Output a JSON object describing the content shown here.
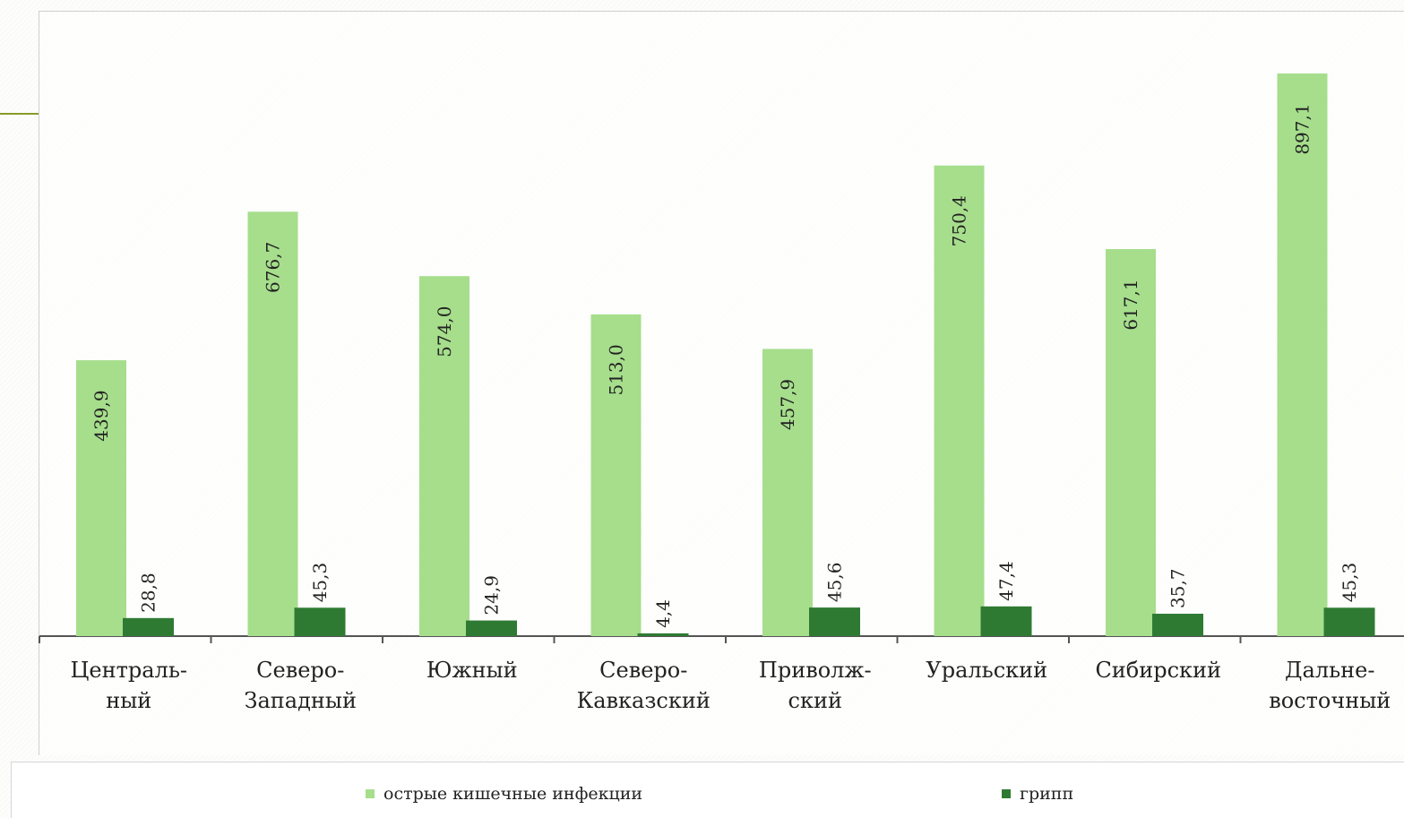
{
  "chart_data": {
    "type": "bar",
    "categories": [
      [
        "Централь-",
        "ный"
      ],
      [
        "Северо-",
        "Западный"
      ],
      [
        "Южный"
      ],
      [
        "Северо-",
        "Кавказский"
      ],
      [
        "Приволж-",
        "ский"
      ],
      [
        "Уральский"
      ],
      [
        "Сибирский"
      ],
      [
        "Дальне-",
        "восточный"
      ]
    ],
    "series": [
      {
        "name": "острые кишечные инфекции",
        "color": "#a6de8c",
        "values": [
          439.9,
          676.7,
          574.0,
          513.0,
          457.9,
          750.4,
          617.1,
          897.1
        ],
        "labels": [
          "439,9",
          "676,7",
          "574,0",
          "513,0",
          "457,9",
          "750,4",
          "617,1",
          "897,1"
        ]
      },
      {
        "name": "грипп",
        "color": "#2f7a33",
        "values": [
          28.8,
          45.3,
          24.9,
          4.4,
          45.6,
          47.4,
          35.7,
          45.3
        ],
        "labels": [
          "28,8",
          "45,3",
          "24,9",
          "4,4",
          "45,6",
          "47,4",
          "35,7",
          "45,3"
        ]
      }
    ],
    "ylim": [
      0,
      1000
    ],
    "grid": false,
    "legend_position": "bottom",
    "xlabel": "",
    "ylabel": "",
    "title": ""
  }
}
